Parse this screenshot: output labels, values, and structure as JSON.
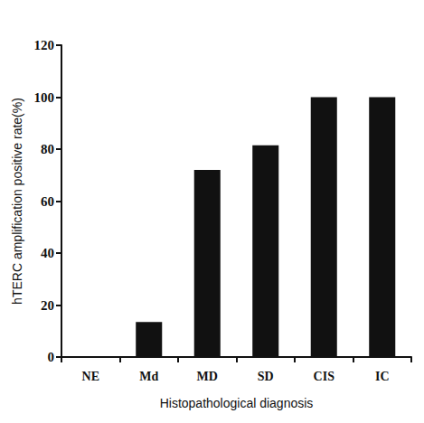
{
  "chart_data": {
    "type": "bar",
    "categories": [
      "NE",
      "Md",
      "MD",
      "SD",
      "CIS",
      "IC"
    ],
    "values": [
      0,
      13.5,
      72,
      81.5,
      100,
      100
    ],
    "color": "#111111",
    "xlabel": "Histopathological diagnosis",
    "ylabel": "hTERC amplification positive rate(%)",
    "ylim": [
      0,
      120
    ],
    "yticks": [
      0,
      20,
      40,
      60,
      80,
      100,
      120
    ],
    "grid": false
  }
}
